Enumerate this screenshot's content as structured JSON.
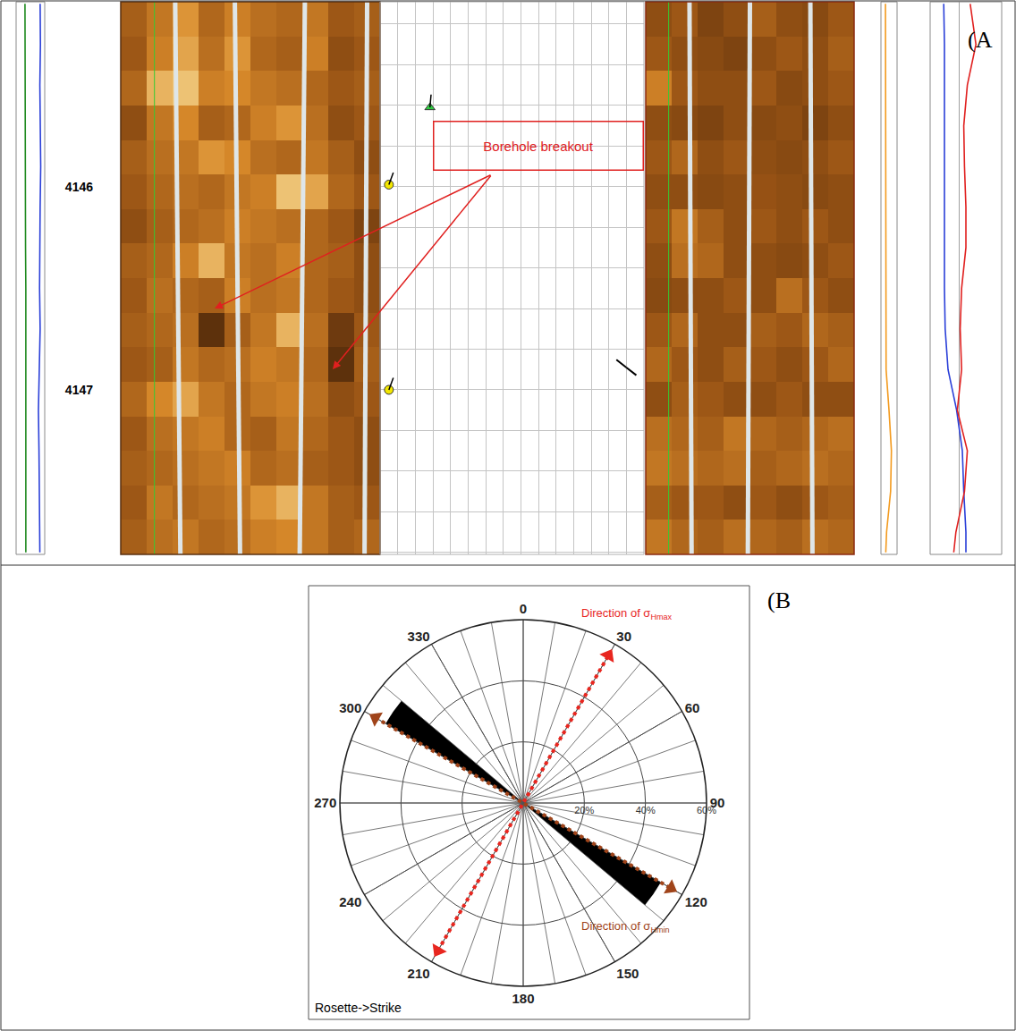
{
  "chart_data": [
    {
      "type": "well_log",
      "panel": "(A",
      "annotation": "Borehole breakout",
      "ylim": [
        4145.09,
        4147.81
      ],
      "yticks": [
        4146,
        4147
      ],
      "tick_labels": "y",
      "grid": true,
      "depth": [
        4145.1,
        4145.3,
        4145.5,
        4145.7,
        4145.9,
        4146.1,
        4146.3,
        4146.5,
        4146.7,
        4146.9,
        4147.1,
        4147.3,
        4147.5,
        4147.7,
        4147.8
      ],
      "tracks": [
        {
          "type": "line",
          "xlim": [
            0,
            100
          ],
          "xticks": [
            0,
            100
          ],
          "series": [
            {
              "color": "#1f8a1f",
              "values": [
                31,
                31,
                31,
                31,
                31,
                31,
                33,
                34,
                34,
                34,
                34,
                34,
                34,
                34,
                34
              ]
            },
            {
              "color": "#2a3fd8",
              "values": [
                84,
                85,
                83,
                84,
                86,
                84,
                83,
                82,
                84,
                80,
                78,
                80,
                82,
                83,
                83
              ]
            }
          ]
        },
        {
          "type": "image",
          "colors": [
            "#2b1405",
            "#9a5415",
            "#d88a2a",
            "#fff0b0"
          ],
          "zlim": [
            0,
            100
          ],
          "cells": [
            [
              40,
              55,
              70,
              45,
              60,
              50,
              45,
              55,
              35,
              40
            ],
            [
              35,
              60,
              75,
              50,
              70,
              45,
              40,
              60,
              30,
              35
            ],
            [
              45,
              80,
              85,
              60,
              65,
              55,
              50,
              45,
              35,
              40
            ],
            [
              30,
              55,
              65,
              40,
              45,
              60,
              70,
              50,
              30,
              35
            ],
            [
              40,
              50,
              55,
              70,
              65,
              50,
              45,
              55,
              40,
              30
            ],
            [
              35,
              45,
              50,
              45,
              55,
              60,
              85,
              75,
              45,
              35
            ],
            [
              30,
              40,
              45,
              50,
              60,
              55,
              50,
              45,
              35,
              25
            ],
            [
              40,
              45,
              60,
              80,
              55,
              50,
              60,
              45,
              40,
              30
            ],
            [
              35,
              50,
              45,
              40,
              60,
              50,
              55,
              45,
              35,
              30
            ],
            [
              40,
              45,
              50,
              15,
              40,
              55,
              80,
              50,
              20,
              35
            ],
            [
              35,
              40,
              55,
              45,
              50,
              60,
              55,
              45,
              15,
              40
            ],
            [
              45,
              65,
              75,
              55,
              45,
              55,
              60,
              50,
              30,
              35
            ],
            [
              35,
              50,
              55,
              60,
              45,
              40,
              55,
              45,
              35,
              30
            ],
            [
              40,
              45,
              50,
              55,
              60,
              45,
              50,
              40,
              35,
              30
            ],
            [
              35,
              55,
              45,
              50,
              55,
              70,
              80,
              55,
              40,
              35
            ],
            [
              40,
              50,
              55,
              45,
              50,
              60,
              65,
              55,
              40,
              45
            ]
          ]
        },
        {
          "type": "tadpole",
          "xlim": [
            0,
            90
          ],
          "xticks": [
            0,
            6,
            12,
            18,
            24,
            30,
            36,
            42,
            48,
            54,
            60,
            66,
            72,
            78,
            84,
            90
          ],
          "grid_depths": [
            4145.2,
            4145.4,
            4145.6,
            4145.8,
            4146,
            4146.2,
            4146.4,
            4146.6,
            4146.8,
            4147,
            4147.2,
            4147.4,
            4147.6,
            4147.8
          ],
          "tadpoles": [
            {
              "depth": 4145.61,
              "dip": 17,
              "azimuth": 5,
              "color": "#2ecc40",
              "marker": "triangle"
            },
            {
              "depth": 4145.99,
              "dip": 3,
              "azimuth": 20,
              "color": "#f2e600",
              "marker": "circle"
            },
            {
              "depth": 4147.0,
              "dip": 3,
              "azimuth": 20,
              "color": "#f2e600",
              "marker": "circle"
            },
            {
              "depth": 4146.89,
              "dip": 84,
              "azimuth": 308,
              "color": "#000000",
              "marker": "line"
            }
          ]
        },
        {
          "type": "image",
          "colors": [
            "#2b1405",
            "#9a5415",
            "#d88a2a",
            "#fff0b0"
          ],
          "zlim": [
            0,
            100
          ],
          "cells": [
            [
              30,
              35,
              25,
              30,
              40,
              30,
              28,
              35
            ],
            [
              35,
              30,
              28,
              25,
              30,
              35,
              30,
              40
            ],
            [
              60,
              35,
              30,
              30,
              35,
              28,
              30,
              35
            ],
            [
              30,
              28,
              25,
              30,
              28,
              30,
              25,
              30
            ],
            [
              35,
              45,
              30,
              35,
              30,
              28,
              30,
              35
            ],
            [
              30,
              30,
              28,
              30,
              32,
              30,
              28,
              30
            ],
            [
              35,
              55,
              40,
              30,
              35,
              30,
              35,
              30
            ],
            [
              30,
              50,
              45,
              30,
              30,
              28,
              30,
              35
            ],
            [
              28,
              30,
              30,
              35,
              30,
              50,
              35,
              30
            ],
            [
              35,
              45,
              30,
              30,
              40,
              35,
              45,
              40
            ],
            [
              45,
              35,
              30,
              40,
              35,
              30,
              35,
              45
            ],
            [
              30,
              40,
              35,
              30,
              30,
              35,
              30,
              30
            ],
            [
              50,
              45,
              40,
              55,
              45,
              40,
              45,
              50
            ],
            [
              55,
              50,
              45,
              50,
              40,
              45,
              50,
              45
            ],
            [
              40,
              35,
              35,
              30,
              35,
              30,
              35,
              40
            ],
            [
              55,
              45,
              40,
              50,
              45,
              40,
              50,
              45
            ]
          ]
        },
        {
          "type": "line",
          "xlim": [
            0,
            100
          ],
          "xticks": [
            0,
            100
          ],
          "series": [
            {
              "color": "#f39a1e",
              "values": [
                28,
                28,
                28,
                30,
                30,
                30,
                29,
                28,
                28,
                32,
                50,
                65,
                60,
                35,
                30
              ]
            }
          ]
        },
        {
          "type": "line",
          "xlim": [
            0,
            100
          ],
          "xticks": [
            0,
            40,
            100
          ],
          "series": [
            {
              "color": "#2a3fd8",
              "values": [
                19,
                20,
                20,
                20,
                20,
                20,
                20,
                20,
                21,
                25,
                37,
                45,
                47,
                50,
                50
              ]
            },
            {
              "color": "#e0201f",
              "values": [
                56,
                64,
                52,
                47,
                48,
                50,
                50,
                44,
                42,
                44,
                38,
                52,
                48,
                36,
                33
              ]
            }
          ]
        }
      ]
    },
    {
      "type": "rose",
      "panel": "(B",
      "title": "Rosette->Strike",
      "theta": [
        125,
        305
      ],
      "values": [
        52,
        52
      ],
      "bin_width": 10,
      "color": "#000000",
      "ylim": [
        0,
        60
      ],
      "yticks": [
        {
          "value": 20,
          "label": "20%"
        },
        {
          "value": 40,
          "label": "40%"
        },
        {
          "value": 60,
          "label": "60%"
        }
      ],
      "xticks": [
        0,
        30,
        60,
        90,
        120,
        150,
        180,
        210,
        240,
        270,
        300,
        330
      ],
      "grid": true,
      "stress_directions": [
        {
          "label": "Direction of σ",
          "subscript": "Hmax",
          "azimuth": 30,
          "color": "#e8261f"
        },
        {
          "label": "Direction of σ",
          "subscript": "Hmin",
          "azimuth": 120,
          "color": "#a0441a"
        }
      ]
    }
  ]
}
